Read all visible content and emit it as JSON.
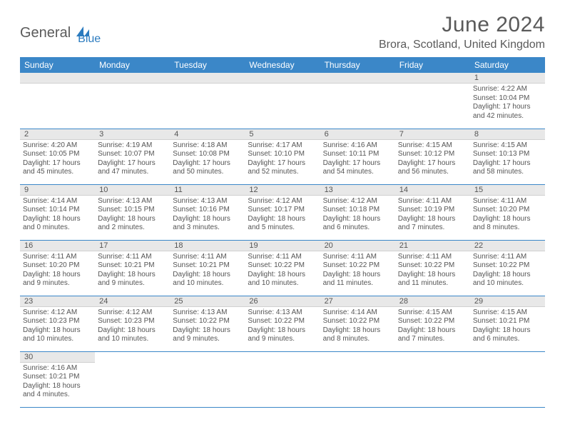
{
  "logo": {
    "text1": "General",
    "text2": "Blue"
  },
  "title": "June 2024",
  "location": "Brora, Scotland, United Kingdom",
  "colors": {
    "header_bg": "#3b87c8",
    "header_text": "#ffffff",
    "daynum_bg": "#e8e8e8",
    "text": "#555555",
    "row_border": "#3b87c8"
  },
  "day_headers": [
    "Sunday",
    "Monday",
    "Tuesday",
    "Wednesday",
    "Thursday",
    "Friday",
    "Saturday"
  ],
  "weeks": [
    [
      null,
      null,
      null,
      null,
      null,
      null,
      {
        "n": "1",
        "sunrise": "4:22 AM",
        "sunset": "10:04 PM",
        "day_h": "17",
        "day_m": "42"
      }
    ],
    [
      {
        "n": "2",
        "sunrise": "4:20 AM",
        "sunset": "10:05 PM",
        "day_h": "17",
        "day_m": "45"
      },
      {
        "n": "3",
        "sunrise": "4:19 AM",
        "sunset": "10:07 PM",
        "day_h": "17",
        "day_m": "47"
      },
      {
        "n": "4",
        "sunrise": "4:18 AM",
        "sunset": "10:08 PM",
        "day_h": "17",
        "day_m": "50"
      },
      {
        "n": "5",
        "sunrise": "4:17 AM",
        "sunset": "10:10 PM",
        "day_h": "17",
        "day_m": "52"
      },
      {
        "n": "6",
        "sunrise": "4:16 AM",
        "sunset": "10:11 PM",
        "day_h": "17",
        "day_m": "54"
      },
      {
        "n": "7",
        "sunrise": "4:15 AM",
        "sunset": "10:12 PM",
        "day_h": "17",
        "day_m": "56"
      },
      {
        "n": "8",
        "sunrise": "4:15 AM",
        "sunset": "10:13 PM",
        "day_h": "17",
        "day_m": "58"
      }
    ],
    [
      {
        "n": "9",
        "sunrise": "4:14 AM",
        "sunset": "10:14 PM",
        "day_h": "18",
        "day_m": "0"
      },
      {
        "n": "10",
        "sunrise": "4:13 AM",
        "sunset": "10:15 PM",
        "day_h": "18",
        "day_m": "2"
      },
      {
        "n": "11",
        "sunrise": "4:13 AM",
        "sunset": "10:16 PM",
        "day_h": "18",
        "day_m": "3"
      },
      {
        "n": "12",
        "sunrise": "4:12 AM",
        "sunset": "10:17 PM",
        "day_h": "18",
        "day_m": "5"
      },
      {
        "n": "13",
        "sunrise": "4:12 AM",
        "sunset": "10:18 PM",
        "day_h": "18",
        "day_m": "6"
      },
      {
        "n": "14",
        "sunrise": "4:11 AM",
        "sunset": "10:19 PM",
        "day_h": "18",
        "day_m": "7"
      },
      {
        "n": "15",
        "sunrise": "4:11 AM",
        "sunset": "10:20 PM",
        "day_h": "18",
        "day_m": "8"
      }
    ],
    [
      {
        "n": "16",
        "sunrise": "4:11 AM",
        "sunset": "10:20 PM",
        "day_h": "18",
        "day_m": "9"
      },
      {
        "n": "17",
        "sunrise": "4:11 AM",
        "sunset": "10:21 PM",
        "day_h": "18",
        "day_m": "9"
      },
      {
        "n": "18",
        "sunrise": "4:11 AM",
        "sunset": "10:21 PM",
        "day_h": "18",
        "day_m": "10"
      },
      {
        "n": "19",
        "sunrise": "4:11 AM",
        "sunset": "10:22 PM",
        "day_h": "18",
        "day_m": "10"
      },
      {
        "n": "20",
        "sunrise": "4:11 AM",
        "sunset": "10:22 PM",
        "day_h": "18",
        "day_m": "11"
      },
      {
        "n": "21",
        "sunrise": "4:11 AM",
        "sunset": "10:22 PM",
        "day_h": "18",
        "day_m": "11"
      },
      {
        "n": "22",
        "sunrise": "4:11 AM",
        "sunset": "10:22 PM",
        "day_h": "18",
        "day_m": "10"
      }
    ],
    [
      {
        "n": "23",
        "sunrise": "4:12 AM",
        "sunset": "10:23 PM",
        "day_h": "18",
        "day_m": "10"
      },
      {
        "n": "24",
        "sunrise": "4:12 AM",
        "sunset": "10:23 PM",
        "day_h": "18",
        "day_m": "10"
      },
      {
        "n": "25",
        "sunrise": "4:13 AM",
        "sunset": "10:22 PM",
        "day_h": "18",
        "day_m": "9"
      },
      {
        "n": "26",
        "sunrise": "4:13 AM",
        "sunset": "10:22 PM",
        "day_h": "18",
        "day_m": "9"
      },
      {
        "n": "27",
        "sunrise": "4:14 AM",
        "sunset": "10:22 PM",
        "day_h": "18",
        "day_m": "8"
      },
      {
        "n": "28",
        "sunrise": "4:15 AM",
        "sunset": "10:22 PM",
        "day_h": "18",
        "day_m": "7"
      },
      {
        "n": "29",
        "sunrise": "4:15 AM",
        "sunset": "10:21 PM",
        "day_h": "18",
        "day_m": "6"
      }
    ],
    [
      {
        "n": "30",
        "sunrise": "4:16 AM",
        "sunset": "10:21 PM",
        "day_h": "18",
        "day_m": "4"
      },
      null,
      null,
      null,
      null,
      null,
      null
    ]
  ],
  "labels": {
    "sunrise": "Sunrise:",
    "sunset": "Sunset:",
    "daylight_prefix": "Daylight:",
    "hours_word": "hours",
    "and_word": "and",
    "minutes_word": "minutes."
  }
}
